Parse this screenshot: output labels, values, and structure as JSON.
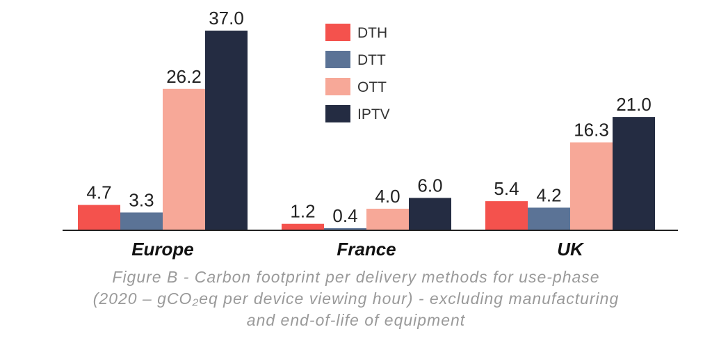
{
  "chart_data": {
    "type": "bar",
    "categories": [
      "Europe",
      "France",
      "UK"
    ],
    "series": [
      {
        "name": "DTH",
        "color": "#f4524d",
        "values": [
          4.7,
          1.2,
          5.4
        ]
      },
      {
        "name": "DTT",
        "color": "#5b7396",
        "values": [
          3.3,
          0.4,
          4.2
        ]
      },
      {
        "name": "OTT",
        "color": "#f7a898",
        "values": [
          26.2,
          4.0,
          16.3
        ]
      },
      {
        "name": "IPTV",
        "color": "#242c42",
        "values": [
          37.0,
          6.0,
          21.0
        ]
      }
    ],
    "data_labels": [
      [
        "4.7",
        "1.2",
        "5.4"
      ],
      [
        "3.3",
        "0.4",
        "4.2"
      ],
      [
        "26.2",
        "4.0",
        "16.3"
      ],
      [
        "37.0",
        "6.0",
        "21.0"
      ]
    ],
    "ylim": [
      0,
      37.0
    ],
    "legend": "top-center",
    "grid": false
  },
  "caption": {
    "line1": "Figure B - Carbon footprint per delivery methods for use-phase",
    "line2": "(2020 – gCO₂eq per device viewing hour) - excluding manufacturing",
    "line3": "and end-of-life of equipment"
  }
}
